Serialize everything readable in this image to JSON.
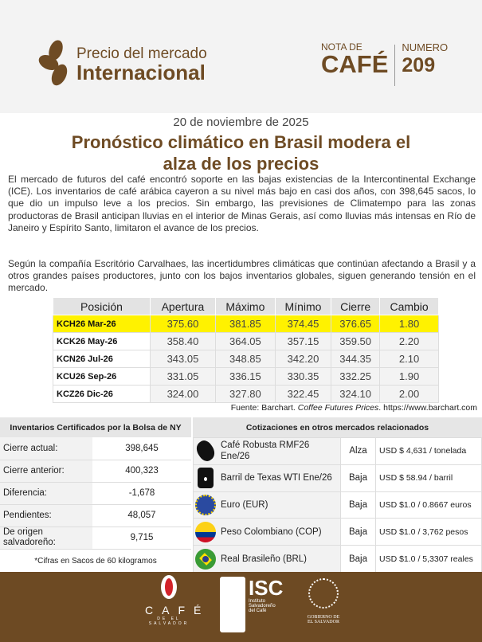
{
  "header": {
    "line1": "Precio del mercado",
    "line2": "Internacional",
    "nota_de": "NOTA DE",
    "cafe": "CAFÉ",
    "numero_label": "NUMERO",
    "numero": "209"
  },
  "date": "20 de noviembre de 2025",
  "title_line1": "Pronóstico climático en Brasil modera el",
  "title_line2": "alza de los precios",
  "paragraphs": [
    "El mercado de futuros del café encontró soporte en las bajas existencias de la Intercontinental Exchange (ICE). Los inventarios de café arábica cayeron a su nivel más bajo en casi dos años, con 398,645 sacos, lo que dio un impulso leve a los precios. Sin embargo, las previsiones de Climatempo para las zonas productoras de Brasil anticipan lluvias en el interior de Minas Gerais, así como lluvias más intensas en Río de Janeiro y Espírito Santo, limitaron el avance de los precios.",
    "Según la compañía Escritório Carvalhaes, las incertidumbres climáticas que continúan afectando a Brasil y a otros grandes países productores, junto con los bajos inventarios globales, siguen generando tensión en el mercado."
  ],
  "futures": {
    "headers": [
      "Posición",
      "Apertura",
      "Máximo",
      "Mínimo",
      "Cierre",
      "Cambio"
    ],
    "rows": [
      [
        "KCH26 Mar-26",
        "375.60",
        "381.85",
        "374.45",
        "376.65",
        "1.80"
      ],
      [
        "KCK26 May-26",
        "358.40",
        "364.05",
        "357.15",
        "359.50",
        "2.20"
      ],
      [
        "KCN26 Jul-26",
        "343.05",
        "348.85",
        "342.20",
        "344.35",
        "2.10"
      ],
      [
        "KCU26 Sep-26",
        "331.05",
        "336.15",
        "330.35",
        "332.25",
        "1.90"
      ],
      [
        "KCZ26 Dic-26",
        "324.00",
        "327.80",
        "322.45",
        "324.10",
        "2.00"
      ]
    ],
    "highlight_color": "#fff200",
    "source_prefix": "Fuente: Barchart. ",
    "source_italic": "Coffee Futures Prices",
    "source_suffix": ". https://www.barchart.com"
  },
  "inventory": {
    "title": "Inventarios Certificados por la Bolsa de NY",
    "rows": [
      [
        "Cierre actual:",
        "398,645"
      ],
      [
        "Cierre anterior:",
        "400,323"
      ],
      [
        "Diferencia:",
        "-1,678"
      ],
      [
        "Pendientes:",
        "48,057"
      ],
      [
        "De origen salvadoreño:",
        "9,715"
      ]
    ],
    "note": "*Cifras en Sacos de 60 kilogramos"
  },
  "markets": {
    "title": "Cotizaciones en otros mercados relacionados",
    "rows": [
      {
        "icon": "coffee-bean-icon",
        "name": "Café Robusta RMF26 Ene/26",
        "trend": "Alza",
        "price": "USD $ 4,631 / tonelada"
      },
      {
        "icon": "oil-barrel-icon",
        "name": "Barril de Texas WTI Ene/26",
        "trend": "Baja",
        "price": "USD $ 58.94 / barril"
      },
      {
        "icon": "eu-flag-icon",
        "name": "Euro (EUR)",
        "trend": "Baja",
        "price": "USD $1.0 / 0.8667 euros"
      },
      {
        "icon": "colombia-flag-icon",
        "name": "Peso Colombiano (COP)",
        "trend": "Baja",
        "price": "USD $1.0 / 3,762 pesos"
      },
      {
        "icon": "brazil-flag-icon",
        "name": "Real Brasileño (BRL)",
        "trend": "Baja",
        "price": "USD $1.0 / 5,3307 reales"
      }
    ]
  },
  "footer": {
    "cafe": "CAFÉ",
    "cafe_sub": "DE EL SALVADOR",
    "isc": "ISC",
    "isc_sub1": "Instituto",
    "isc_sub2": "Salvadoreño",
    "isc_sub3": "del Café",
    "gob1": "GOBIERNO DE",
    "gob2": "EL SALVADOR"
  },
  "colors": {
    "brand_brown": "#6e4b24",
    "footer_brown": "#6d4a23"
  }
}
